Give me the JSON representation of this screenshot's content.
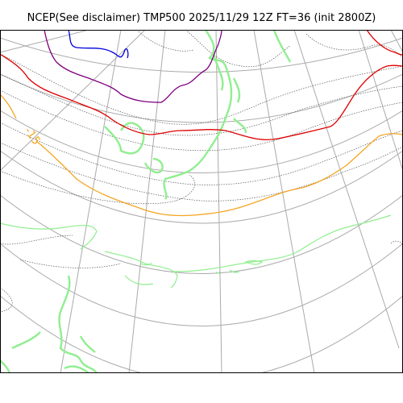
{
  "title": "NCEP(See disclaimer) TMP500 2025/11/29 12Z FT=36 (init 2800Z)",
  "contour_labels": [
    {
      "text": "-15",
      "color": "#f5a623"
    }
  ],
  "colors": {
    "frame": "#000000",
    "graticule": "#aaaaaa",
    "isotherm_minor": "#555555",
    "coast": "#8fe88f",
    "coast_thick": "#90ee90",
    "red_contour": "#e00000",
    "orange_contour": "#f5a623",
    "purple_contour": "#800080",
    "blue_contour": "#0000dd"
  }
}
